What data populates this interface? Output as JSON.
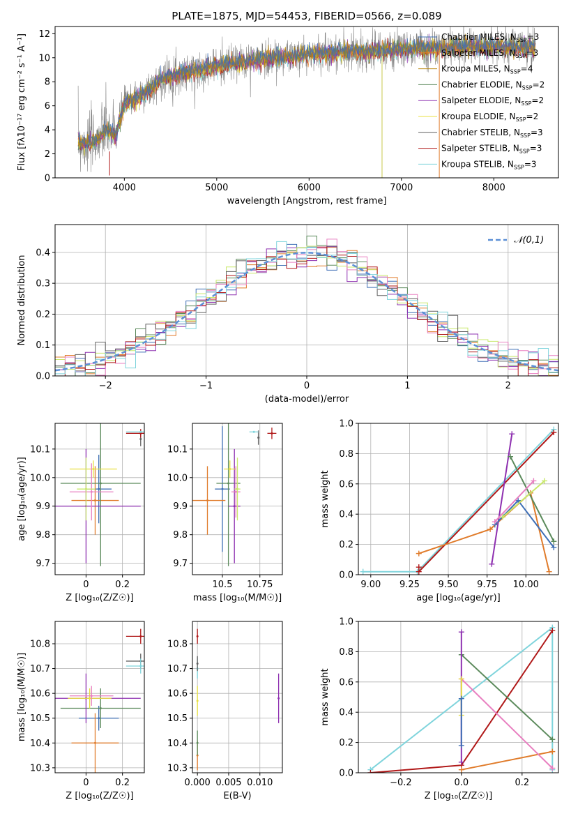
{
  "title": "PLATE=1875, MJD=54453, FIBERID=0566, z=0.089",
  "colors": {
    "Chabrier MILES": "#3f6fb5",
    "Salpeter MILES": "#e07b2a",
    "Kroupa MILES": "#b8860b",
    "Chabrier ELODIE": "#5b8a5b",
    "Salpeter ELODIE": "#8e30b0",
    "Kroupa ELODIE": "#e8e040",
    "Chabrier STELIB": "#606060",
    "Salpeter STELIB": "#b01818",
    "Kroupa STELIB": "#7fd4dc",
    "normal": "#5b8fd6",
    "pink": "#e87fc0",
    "lightgreen": "#c8e86a",
    "grid": "#b0b0b0"
  },
  "chart_data": [
    {
      "id": "spectrum",
      "type": "line",
      "xlabel": "wavelength [Angstrom, rest frame]",
      "ylabel": "Flux [fλ10⁻¹⁷ erg cm⁻² s⁻¹ A⁻¹]",
      "xlim": [
        3250,
        8700
      ],
      "ylim": [
        0,
        12.6
      ],
      "xticks": [
        4000,
        5000,
        6000,
        7000,
        8000
      ],
      "yticks": [
        0,
        2,
        4,
        6,
        8,
        10,
        12
      ],
      "grid": false,
      "legend_position": "right",
      "legend": [
        "Chabrier MILES, N_SSP=3",
        "Salpeter MILES, N_SSP=3",
        "Kroupa MILES, N_SSP=4",
        "Chabrier ELODIE, N_SSP=2",
        "Salpeter ELODIE, N_SSP=2",
        "Kroupa ELODIE, N_SSP=2",
        "Chabrier STELIB, N_SSP=3",
        "Salpeter STELIB, N_SSP=3",
        "Kroupa STELIB, N_SSP=3"
      ],
      "continuum": {
        "x": [
          3500,
          3600,
          3700,
          3800,
          3900,
          4000,
          4100,
          4200,
          4300,
          4400,
          4500,
          4600,
          4800,
          5000,
          5200,
          5400,
          5600,
          5800,
          6000,
          6200,
          6400,
          6600,
          6800,
          7000,
          7200,
          7400,
          7600,
          7800,
          8000,
          8200,
          8400
        ],
        "y": [
          3.0,
          2.8,
          3.2,
          4.0,
          3.5,
          6.2,
          6.6,
          7.0,
          7.5,
          8.2,
          8.5,
          8.7,
          9.0,
          9.3,
          9.6,
          9.8,
          10.0,
          10.1,
          10.3,
          10.4,
          10.5,
          10.5,
          10.6,
          10.7,
          10.8,
          10.8,
          10.9,
          10.9,
          10.9,
          10.8,
          10.9
        ]
      }
    },
    {
      "id": "residuals",
      "type": "histogram",
      "xlabel": "(data-model)/error",
      "ylabel": "Normed distribution",
      "xlim": [
        -2.5,
        2.5
      ],
      "ylim": [
        0,
        0.49
      ],
      "xticks": [
        -2,
        -1,
        0,
        1,
        2
      ],
      "yticks": [
        0.0,
        0.1,
        0.2,
        0.3,
        0.4
      ],
      "grid": true,
      "legend_position": "top-right",
      "legend": [
        "𝒩(0,1)"
      ],
      "bin_width": 0.1
    },
    {
      "id": "age_vs_Z",
      "type": "scatter",
      "xlabel": "Z [log₁₀(Z/Z☉)]",
      "ylabel": "age  [log₁₀(age/yr)]",
      "xlim": [
        -0.17,
        0.32
      ],
      "ylim": [
        9.66,
        10.19
      ],
      "xticks": [
        0.0,
        0.2
      ],
      "yticks": [
        9.7,
        9.8,
        9.9,
        10.0,
        10.1
      ],
      "grid": true,
      "points": [
        {
          "s": "Chabrier MILES",
          "x": 0.07,
          "y": 9.96,
          "xerr": 0.07,
          "yerr": 0.12
        },
        {
          "s": "Salpeter MILES",
          "x": 0.05,
          "y": 9.92,
          "xerr": 0.13,
          "yerr": 0.12
        },
        {
          "s": "Chabrier ELODIE",
          "x": 0.08,
          "y": 9.98,
          "xerr": 0.22,
          "yerr": 0.29
        },
        {
          "s": "Salpeter ELODIE",
          "x": 0.0,
          "y": 9.9,
          "xerr": 0.3,
          "yerr": 0.2
        },
        {
          "s": "Kroupa ELODIE",
          "x": 0.04,
          "y": 10.03,
          "xerr": 0.13,
          "yerr": 0.03
        },
        {
          "s": "pink",
          "x": 0.03,
          "y": 9.95,
          "xerr": 0.12,
          "yerr": 0.1
        },
        {
          "s": "lightgreen",
          "x": 0.0,
          "y": 9.96,
          "xerr": 0.05,
          "yerr": 0.11
        },
        {
          "s": "Chabrier STELIB",
          "x": 0.3,
          "y": 10.135,
          "xerr": 0.0,
          "yerr": 0.025
        },
        {
          "s": "Salpeter STELIB",
          "x": 0.3,
          "y": 10.155,
          "xerr": 0.08,
          "yerr": 0.015
        },
        {
          "s": "Kroupa STELIB",
          "x": 0.3,
          "y": 10.16,
          "xerr": 0.08,
          "yerr": 0.0
        }
      ]
    },
    {
      "id": "age_vs_mass",
      "type": "scatter",
      "xlabel": "mass [log₁₀(M/M☉)]",
      "ylabel": "",
      "xlim": [
        10.3,
        10.9
      ],
      "ylim": [
        9.66,
        10.19
      ],
      "xticks": [
        10.5,
        10.75
      ],
      "yticks": [
        9.7,
        9.8,
        9.9,
        10.0,
        10.1
      ],
      "grid": true,
      "points": [
        {
          "s": "Chabrier MILES",
          "x": 10.5,
          "y": 9.96,
          "xerr": 0.05,
          "yerr": 0.22
        },
        {
          "s": "Salpeter MILES",
          "x": 10.4,
          "y": 9.92,
          "xerr": 0.12,
          "yerr": 0.12
        },
        {
          "s": "Chabrier ELODIE",
          "x": 10.54,
          "y": 9.98,
          "xerr": 0.08,
          "yerr": 0.29
        },
        {
          "s": "Salpeter ELODIE",
          "x": 10.58,
          "y": 9.9,
          "xerr": 0.04,
          "yerr": 0.2
        },
        {
          "s": "Kroupa ELODIE",
          "x": 10.55,
          "y": 10.03,
          "xerr": 0.04,
          "yerr": 0.03
        },
        {
          "s": "pink",
          "x": 10.59,
          "y": 9.95,
          "xerr": 0.03,
          "yerr": 0.09
        },
        {
          "s": "lightgreen",
          "x": 10.6,
          "y": 9.96,
          "xerr": 0.02,
          "yerr": 0.11
        },
        {
          "s": "Chabrier STELIB",
          "x": 10.74,
          "y": 10.14,
          "xerr": 0.0,
          "yerr": 0.025
        },
        {
          "s": "Salpeter STELIB",
          "x": 10.83,
          "y": 10.155,
          "xerr": 0.03,
          "yerr": 0.02
        },
        {
          "s": "Kroupa STELIB",
          "x": 10.71,
          "y": 10.16,
          "xerr": 0.03,
          "yerr": 0.0
        }
      ]
    },
    {
      "id": "massweight_vs_age",
      "type": "line",
      "xlabel": "age  [log₁₀(age/yr)]",
      "ylabel": "mass weight",
      "xlim": [
        8.92,
        10.21
      ],
      "ylim": [
        0,
        1
      ],
      "xticks": [
        9.0,
        9.25,
        9.5,
        9.75,
        10.0
      ],
      "yticks": [
        0.0,
        0.2,
        0.4,
        0.6,
        0.8,
        1.0
      ],
      "grid": true,
      "series": [
        {
          "s": "Kroupa STELIB",
          "x": [
            8.95,
            9.3,
            10.18
          ],
          "y": [
            0.02,
            0.02,
            0.96
          ]
        },
        {
          "s": "Salpeter STELIB",
          "x": [
            9.31,
            10.18
          ],
          "y": [
            0.02,
            0.94
          ]
        },
        {
          "s": "Salpeter MILES",
          "x": [
            9.31,
            9.77,
            10.03,
            10.15
          ],
          "y": [
            0.14,
            0.3,
            0.54,
            0.02
          ]
        },
        {
          "s": "Salpeter ELODIE",
          "x": [
            9.78,
            9.91
          ],
          "y": [
            0.07,
            0.93
          ]
        },
        {
          "s": "Chabrier ELODIE",
          "x": [
            9.9,
            10.18
          ],
          "y": [
            0.78,
            0.22
          ]
        },
        {
          "s": "Chabrier MILES",
          "x": [
            9.8,
            9.95,
            10.18
          ],
          "y": [
            0.33,
            0.49,
            0.18
          ]
        },
        {
          "s": "pink",
          "x": [
            9.8,
            10.05
          ],
          "y": [
            0.35,
            0.62
          ]
        },
        {
          "s": "lightgreen",
          "x": [
            9.85,
            10.12
          ],
          "y": [
            0.38,
            0.62
          ]
        },
        {
          "s": "Salpeter STELIB",
          "x": [
            9.31
          ],
          "y": [
            0.05
          ]
        }
      ]
    },
    {
      "id": "mass_vs_Z",
      "type": "scatter",
      "xlabel": "Z [log₁₀(Z/Z☉)]",
      "ylabel": "mass [log₁₀(M/M☉)]",
      "xlim": [
        -0.17,
        0.32
      ],
      "ylim": [
        10.28,
        10.89
      ],
      "xticks": [
        0.0,
        0.2
      ],
      "yticks": [
        10.3,
        10.4,
        10.5,
        10.6,
        10.7,
        10.8
      ],
      "grid": true,
      "points": [
        {
          "s": "Chabrier MILES",
          "x": 0.07,
          "y": 10.5,
          "xerr": 0.11,
          "yerr": 0.05
        },
        {
          "s": "Salpeter MILES",
          "x": 0.05,
          "y": 10.4,
          "xerr": 0.13,
          "yerr": 0.12
        },
        {
          "s": "Chabrier ELODIE",
          "x": 0.08,
          "y": 10.54,
          "xerr": 0.22,
          "yerr": 0.08
        },
        {
          "s": "Salpeter ELODIE",
          "x": 0.0,
          "y": 10.58,
          "xerr": 0.3,
          "yerr": 0.1
        },
        {
          "s": "Kroupa ELODIE",
          "x": 0.02,
          "y": 10.58,
          "xerr": 0.12,
          "yerr": 0.04
        },
        {
          "s": "pink",
          "x": 0.03,
          "y": 10.59,
          "xerr": 0.12,
          "yerr": 0.04
        },
        {
          "s": "Chabrier STELIB",
          "x": 0.3,
          "y": 10.73,
          "xerr": 0.08,
          "yerr": 0.03
        },
        {
          "s": "Salpeter STELIB",
          "x": 0.3,
          "y": 10.83,
          "xerr": 0.08,
          "yerr": 0.03
        },
        {
          "s": "Kroupa STELIB",
          "x": 0.3,
          "y": 10.71,
          "xerr": 0.08,
          "yerr": 0.03
        }
      ]
    },
    {
      "id": "mass_vs_ebv",
      "type": "scatter",
      "xlabel": "E(B-V)",
      "ylabel": "",
      "xlim": [
        -0.0008,
        0.0136
      ],
      "ylim": [
        10.28,
        10.89
      ],
      "xticks": [
        0.0,
        0.005,
        0.01
      ],
      "yticks": [
        10.3,
        10.4,
        10.5,
        10.6,
        10.7,
        10.8
      ],
      "grid": true,
      "points": [
        {
          "s": "Salpeter MILES",
          "x": 0.0,
          "y": 10.35,
          "xerr": 0,
          "yerr": 0.06
        },
        {
          "s": "Chabrier ELODIE",
          "x": 0.0,
          "y": 10.4,
          "xerr": 0,
          "yerr": 0.05
        },
        {
          "s": "Kroupa ELODIE",
          "x": 0.0,
          "y": 10.57,
          "xerr": 0,
          "yerr": 0.06
        },
        {
          "s": "Kroupa STELIB",
          "x": 0.0,
          "y": 10.7,
          "xerr": 0,
          "yerr": 0.04
        },
        {
          "s": "Chabrier STELIB",
          "x": 0.0,
          "y": 10.72,
          "xerr": 0,
          "yerr": 0.03
        },
        {
          "s": "Salpeter STELIB",
          "x": 0.0,
          "y": 10.83,
          "xerr": 0,
          "yerr": 0.03
        },
        {
          "s": "Salpeter ELODIE",
          "x": 0.013,
          "y": 10.58,
          "xerr": 0,
          "yerr": 0.1
        }
      ]
    },
    {
      "id": "massweight_vs_Z",
      "type": "line",
      "xlabel": "Z [log₁₀(Z/Z☉)]",
      "ylabel": "mass weight",
      "xlim": [
        -0.34,
        0.32
      ],
      "ylim": [
        0,
        1
      ],
      "xticks": [
        -0.2,
        0.0,
        0.2
      ],
      "yticks": [
        0.0,
        0.2,
        0.4,
        0.6,
        0.8,
        1.0
      ],
      "grid": true,
      "series": [
        {
          "s": "Kroupa STELIB",
          "x": [
            -0.3,
            0.3,
            0.3
          ],
          "y": [
            0.02,
            0.96,
            0.02
          ]
        },
        {
          "s": "Salpeter STELIB",
          "x": [
            -0.3,
            0.0,
            0.3
          ],
          "y": [
            0.0,
            0.05,
            0.94
          ]
        },
        {
          "s": "Salpeter MILES",
          "x": [
            0.0,
            0.3
          ],
          "y": [
            0.02,
            0.14
          ]
        },
        {
          "s": "Chabrier ELODIE",
          "x": [
            0.0,
            0.3
          ],
          "y": [
            0.78,
            0.22
          ]
        },
        {
          "s": "pink",
          "x": [
            0.0,
            0.3
          ],
          "y": [
            0.62,
            0.03
          ]
        },
        {
          "s": "Salpeter ELODIE",
          "x": [
            0.0,
            0.0
          ],
          "y": [
            0.07,
            0.93
          ]
        },
        {
          "s": "Kroupa ELODIE",
          "x": [
            0.0,
            0.0
          ],
          "y": [
            0.38,
            0.62
          ]
        },
        {
          "s": "Chabrier MILES",
          "x": [
            0.0,
            0.0
          ],
          "y": [
            0.18,
            0.49
          ]
        }
      ]
    }
  ]
}
